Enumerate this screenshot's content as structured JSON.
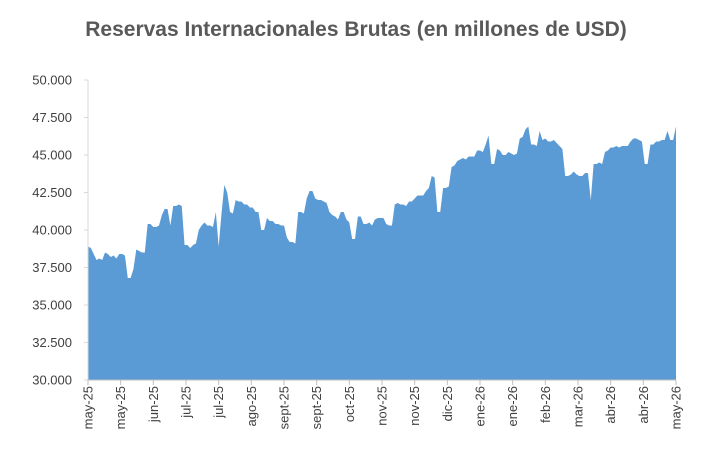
{
  "chart_data": {
    "type": "area",
    "title": "Reservas Internacionales Brutas (en millones de USD)",
    "xlabel": "",
    "ylabel": "",
    "ylim": [
      30000,
      50000
    ],
    "y_ticks": [
      {
        "value": 30000,
        "label": "30.000"
      },
      {
        "value": 32500,
        "label": "32.500"
      },
      {
        "value": 35000,
        "label": "35.000"
      },
      {
        "value": 37500,
        "label": "37.500"
      },
      {
        "value": 40000,
        "label": "40.000"
      },
      {
        "value": 42500,
        "label": "42.500"
      },
      {
        "value": 45000,
        "label": "45.000"
      },
      {
        "value": 47500,
        "label": "47.500"
      },
      {
        "value": 50000,
        "label": "50.000"
      }
    ],
    "x_ticks": [
      "may-25",
      "may-25",
      "jun-25",
      "jul-25",
      "jul-25",
      "ago-25",
      "sept-25",
      "sept-25",
      "oct-25",
      "nov-25",
      "nov-25",
      "dic-25",
      "ene-26",
      "ene-26",
      "feb-26",
      "mar-26",
      "abr-26",
      "abr-26",
      "may-26"
    ],
    "grid": false,
    "legend": "none",
    "color": "#5B9BD5",
    "series": [
      {
        "values": [
          38900,
          38800,
          38400,
          38000,
          38100,
          38000,
          38500,
          38400,
          38200,
          38300,
          38100,
          38400,
          38400,
          38300,
          36800,
          36800,
          37400,
          38700,
          38600,
          38500,
          38500,
          40400,
          40400,
          40200,
          40200,
          40300,
          41000,
          41400,
          41400,
          40300,
          41600,
          41600,
          41700,
          41600,
          39000,
          39000,
          38800,
          39000,
          39100,
          40000,
          40300,
          40500,
          40300,
          40300,
          40200,
          41200,
          38900,
          41100,
          43000,
          42500,
          41200,
          41100,
          42000,
          41900,
          41900,
          41700,
          41700,
          41500,
          41500,
          41200,
          41200,
          40000,
          40000,
          40800,
          40600,
          40600,
          40400,
          40400,
          40300,
          40300,
          39500,
          39200,
          39200,
          39100,
          41200,
          41200,
          41100,
          42100,
          42600,
          42600,
          42100,
          42000,
          42000,
          41900,
          41800,
          41200,
          41000,
          40900,
          40700,
          41200,
          41200,
          40700,
          40500,
          39400,
          39400,
          40900,
          40900,
          40400,
          40400,
          40500,
          40300,
          40700,
          40800,
          40800,
          40800,
          40400,
          40300,
          40300,
          41700,
          41800,
          41700,
          41700,
          41600,
          41900,
          41900,
          42100,
          42300,
          42300,
          42300,
          42600,
          42800,
          43600,
          43500,
          41200,
          41200,
          42800,
          42800,
          42900,
          44200,
          44300,
          44600,
          44700,
          44800,
          44700,
          44900,
          44900,
          44900,
          45300,
          45300,
          45200,
          45700,
          46300,
          44400,
          44400,
          45400,
          45300,
          45000,
          45000,
          45200,
          45100,
          45000,
          45100,
          46100,
          46200,
          46700,
          46900,
          45700,
          45700,
          45600,
          46600,
          46000,
          46100,
          45900,
          45900,
          46000,
          45800,
          45600,
          45400,
          43600,
          43600,
          43700,
          43900,
          43700,
          43600,
          43600,
          43800,
          43800,
          42000,
          44400,
          44400,
          44500,
          44400,
          45200,
          45300,
          45500,
          45500,
          45600,
          45500,
          45600,
          45600,
          45600,
          45900,
          46100,
          46100,
          46000,
          45900,
          44400,
          44400,
          45700,
          45700,
          45900,
          45900,
          46000,
          46000,
          46600,
          46000,
          46000,
          46900
        ]
      }
    ]
  }
}
